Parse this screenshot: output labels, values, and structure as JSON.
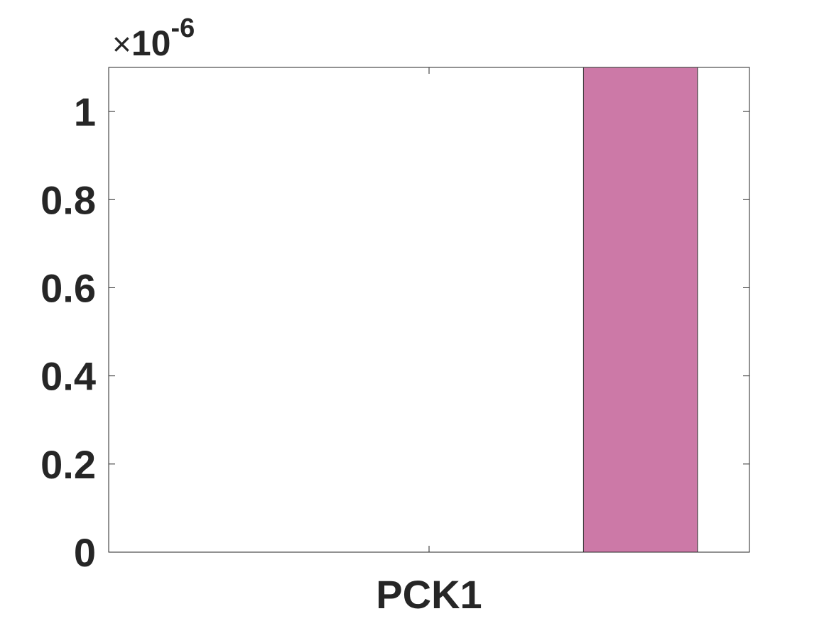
{
  "chart_data": {
    "type": "bar",
    "categories": [
      "PCK1"
    ],
    "series": [
      {
        "values": [
          1.1e-06
        ],
        "color": "#cc79a7"
      }
    ],
    "bar_position": 1.33,
    "xlim": [
      0.5,
      1.5
    ],
    "ylim": [
      0,
      1.1e-06
    ],
    "yticks": [
      0,
      0.2,
      0.4,
      0.6,
      0.8,
      1
    ],
    "ytick_labels": [
      "0",
      "0.2",
      "0.4",
      "0.6",
      "0.8",
      "1"
    ],
    "xtick_labels": [
      "PCK1"
    ],
    "y_exponent": {
      "times": "×",
      "base": "10",
      "power": "-6"
    },
    "grid": false,
    "box": true,
    "axis_color": "#262626",
    "title": "",
    "xlabel": "",
    "ylabel": ""
  }
}
